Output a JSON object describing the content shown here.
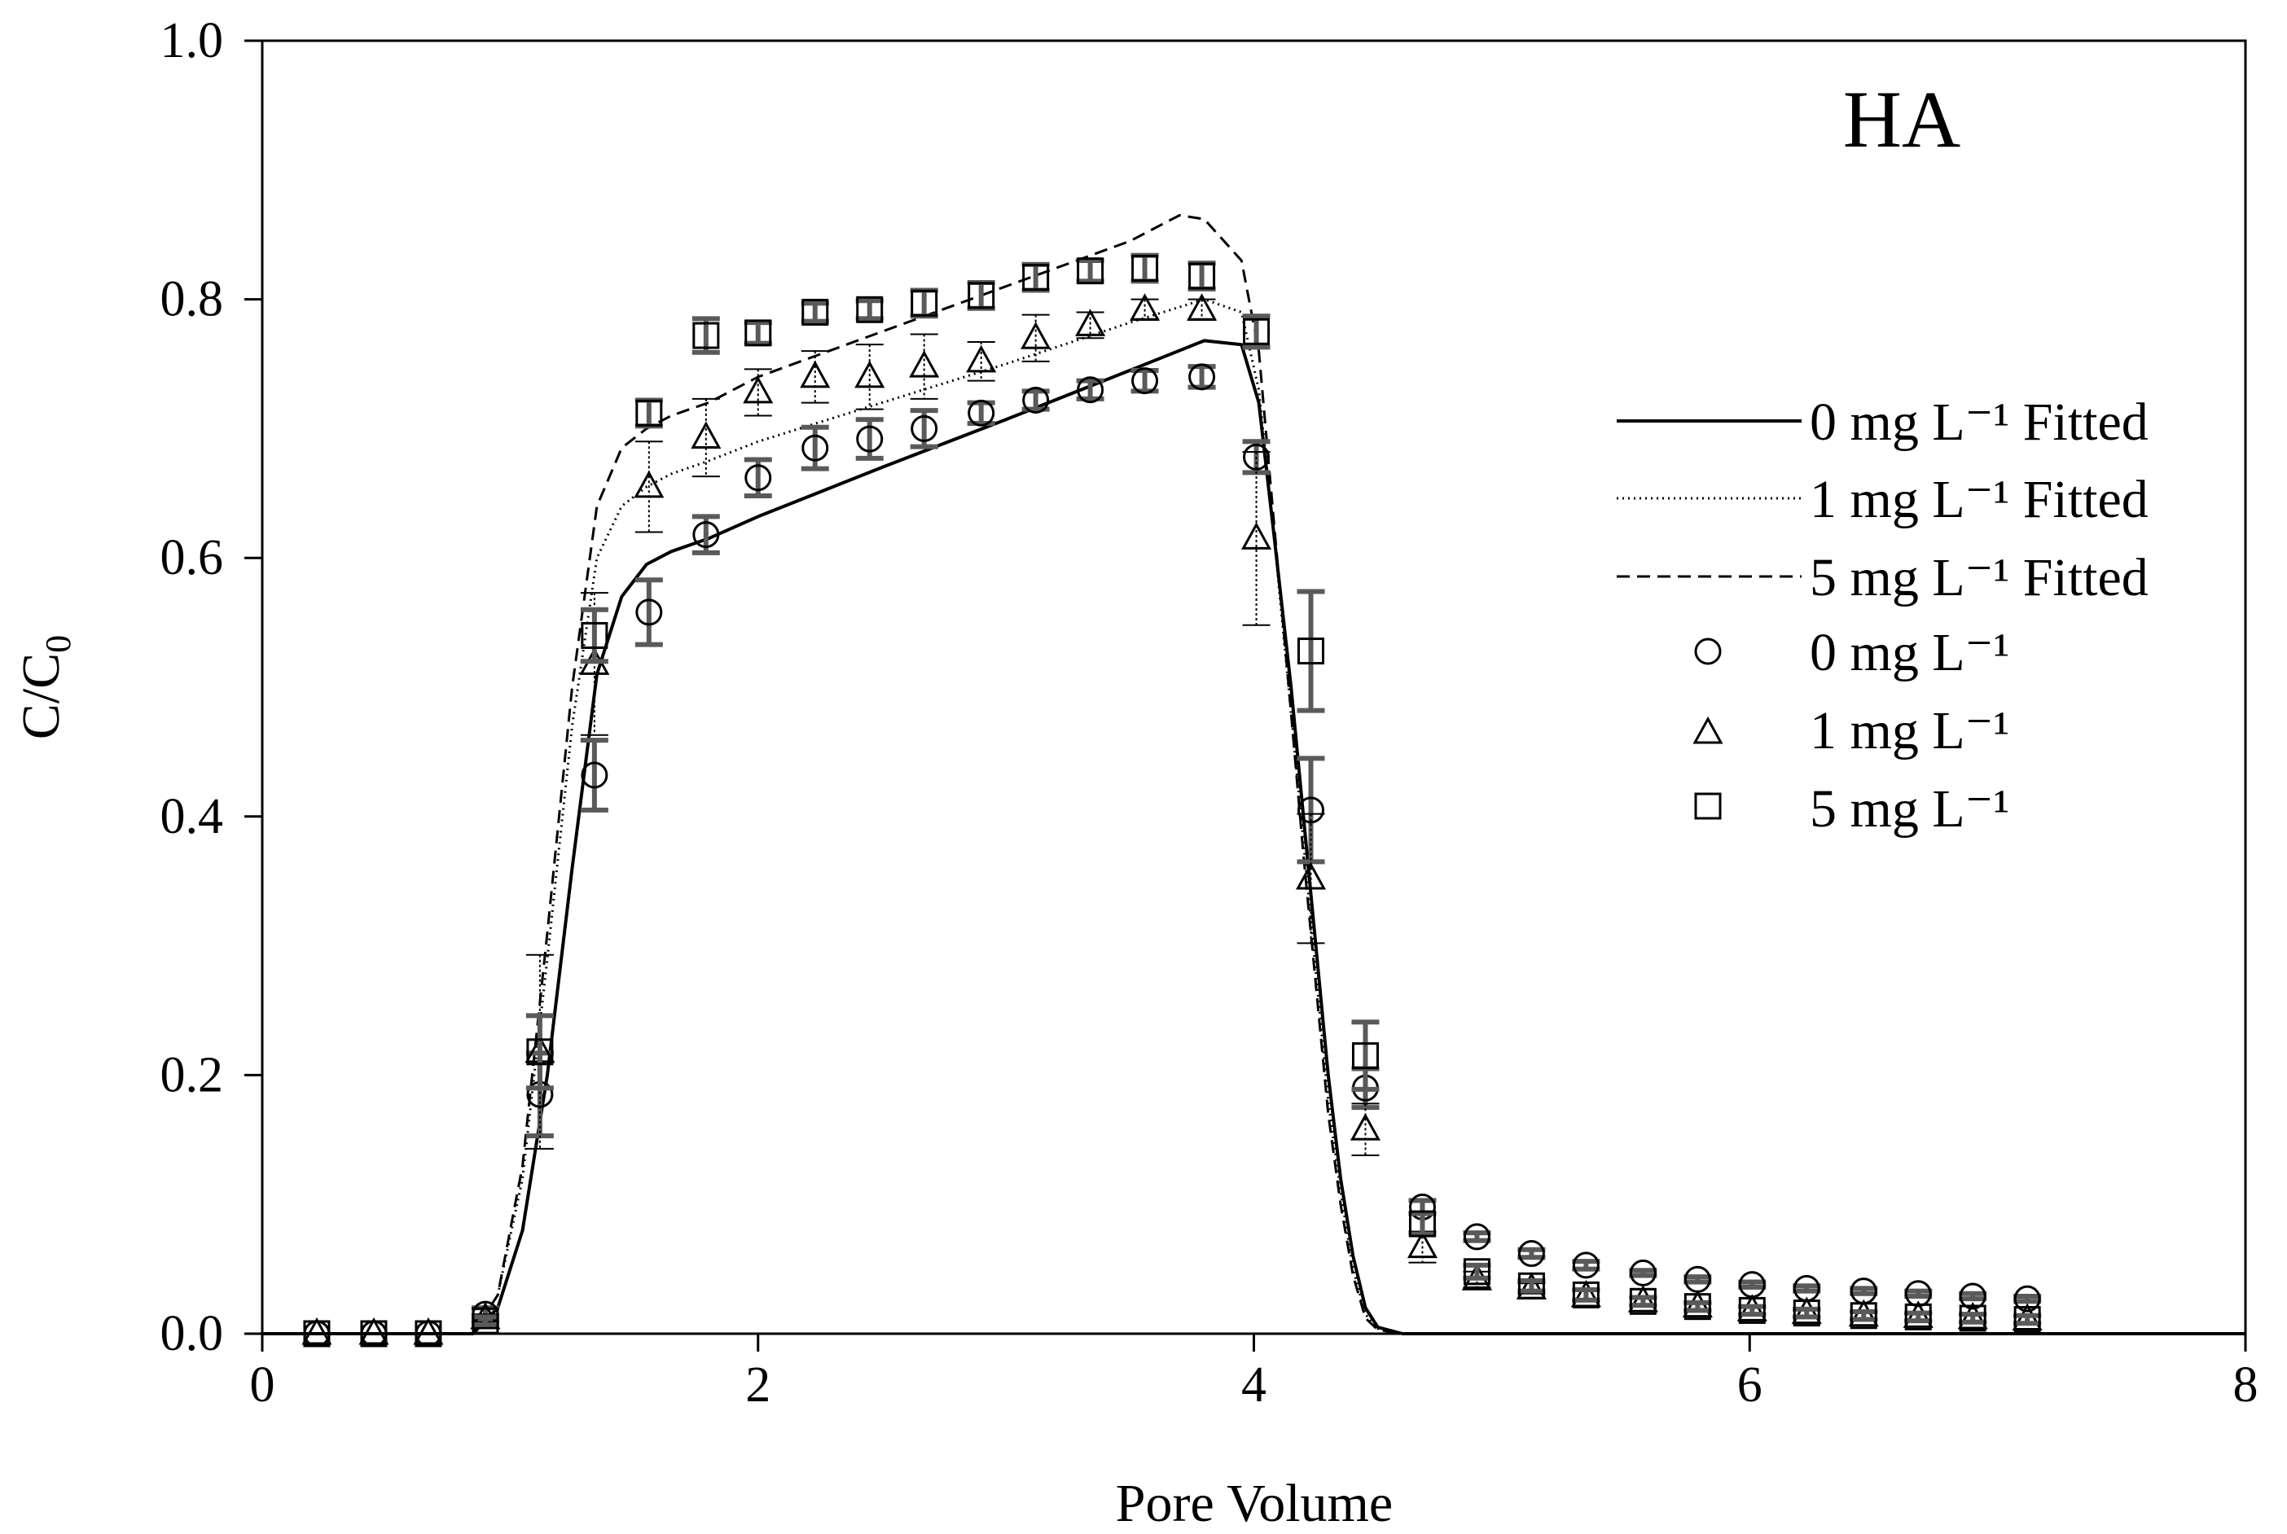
{
  "chart_data": {
    "type": "scatter",
    "panel_label": "HA",
    "xlabel": "Pore Volume",
    "ylabel_main": "C/C",
    "ylabel_sub": "0",
    "xlim": [
      0,
      8
    ],
    "ylim": [
      0,
      1
    ],
    "x_ticks": [
      0,
      2,
      4,
      6,
      8
    ],
    "y_ticks": [
      0.0,
      0.2,
      0.4,
      0.6,
      0.8,
      1.0
    ],
    "x_tick_labels": [
      "0",
      "2",
      "4",
      "6",
      "8"
    ],
    "y_tick_labels": [
      "0.0",
      "0.2",
      "0.4",
      "0.6",
      "0.8",
      "1.0"
    ],
    "grid": false,
    "legend_position": "right",
    "legend": [
      {
        "label": "0 mg L⁻¹ Fitted",
        "kind": "line",
        "style": "solid"
      },
      {
        "label": "1 mg L⁻¹ Fitted",
        "kind": "line",
        "style": "dotted"
      },
      {
        "label": "5 mg L⁻¹ Fitted",
        "kind": "line",
        "style": "dashed"
      },
      {
        "label": "0 mg L⁻¹",
        "kind": "marker",
        "marker": "circle"
      },
      {
        "label": "1 mg L⁻¹",
        "kind": "marker",
        "marker": "triangle"
      },
      {
        "label": "5 mg L⁻¹",
        "kind": "marker",
        "marker": "square"
      }
    ],
    "fitted": [
      {
        "name": "0 mg L⁻¹ Fitted",
        "style": "solid",
        "x": [
          0,
          0.85,
          0.95,
          1.05,
          1.15,
          1.25,
          1.35,
          1.45,
          1.55,
          1.65,
          1.8,
          2.0,
          2.5,
          3.0,
          3.5,
          3.8,
          3.95,
          4.02,
          4.08,
          4.15,
          4.2,
          4.25,
          4.3,
          4.35,
          4.4,
          4.45,
          4.5,
          4.6,
          8
        ],
        "y": [
          0,
          0,
          0.02,
          0.08,
          0.2,
          0.36,
          0.51,
          0.57,
          0.595,
          0.605,
          0.615,
          0.632,
          0.67,
          0.707,
          0.745,
          0.768,
          0.765,
          0.72,
          0.62,
          0.5,
          0.4,
          0.3,
          0.2,
          0.12,
          0.06,
          0.02,
          0.005,
          0.0,
          0
        ]
      },
      {
        "name": "1 mg L⁻¹ Fitted",
        "style": "dotted",
        "x": [
          0,
          0.85,
          0.95,
          1.05,
          1.15,
          1.25,
          1.35,
          1.45,
          1.55,
          1.65,
          1.8,
          2.0,
          2.5,
          3.0,
          3.5,
          3.8,
          3.95,
          4.02,
          4.08,
          4.15,
          4.2,
          4.25,
          4.3,
          4.35,
          4.4,
          4.45,
          4.5,
          4.6,
          8
        ],
        "y": [
          0,
          0,
          0.03,
          0.12,
          0.29,
          0.47,
          0.6,
          0.64,
          0.655,
          0.665,
          0.675,
          0.69,
          0.72,
          0.75,
          0.782,
          0.8,
          0.79,
          0.73,
          0.62,
          0.48,
          0.38,
          0.28,
          0.18,
          0.11,
          0.05,
          0.015,
          0.004,
          0.0,
          0
        ]
      },
      {
        "name": "5 mg L⁻¹ Fitted",
        "style": "dashed",
        "x": [
          0,
          0.85,
          0.95,
          1.05,
          1.15,
          1.25,
          1.35,
          1.45,
          1.55,
          1.65,
          1.8,
          2.0,
          2.5,
          3.0,
          3.5,
          3.7,
          3.8,
          3.95,
          4.02,
          4.08,
          4.15,
          4.2,
          4.25,
          4.3,
          4.35,
          4.4,
          4.45,
          4.5,
          4.6,
          8
        ],
        "y": [
          0,
          0,
          0.03,
          0.13,
          0.31,
          0.5,
          0.64,
          0.685,
          0.7,
          0.71,
          0.72,
          0.74,
          0.775,
          0.81,
          0.845,
          0.865,
          0.862,
          0.83,
          0.76,
          0.63,
          0.48,
          0.37,
          0.27,
          0.17,
          0.1,
          0.045,
          0.012,
          0.003,
          0.0,
          0
        ]
      }
    ],
    "observed": [
      {
        "name": "0 mg L⁻¹",
        "marker": "circle",
        "x": [
          0.22,
          0.45,
          0.67,
          0.9,
          1.12,
          1.34,
          1.56,
          1.79,
          2.0,
          2.23,
          2.45,
          2.67,
          2.9,
          3.12,
          3.34,
          3.56,
          3.79,
          4.01,
          4.23,
          4.45,
          4.68,
          4.9,
          5.12,
          5.34,
          5.57,
          5.79,
          6.01,
          6.23,
          6.46,
          6.68,
          6.9,
          7.12
        ],
        "y": [
          0.0,
          0.0,
          0.0,
          0.015,
          0.185,
          0.432,
          0.558,
          0.618,
          0.662,
          0.685,
          0.692,
          0.7,
          0.712,
          0.722,
          0.73,
          0.737,
          0.74,
          0.678,
          0.405,
          0.19,
          0.098,
          0.075,
          0.062,
          0.053,
          0.047,
          0.042,
          0.038,
          0.035,
          0.033,
          0.031,
          0.029,
          0.027
        ],
        "err": [
          0,
          0,
          0,
          0.005,
          0.032,
          0.027,
          0.025,
          0.014,
          0.014,
          0.016,
          0.015,
          0.014,
          0.008,
          0.007,
          0.007,
          0.008,
          0.008,
          0.012,
          0.04,
          0.015,
          0.005,
          0.003,
          0.003,
          0.003,
          0.002,
          0.002,
          0.002,
          0.002,
          0.002,
          0.002,
          0.002,
          0.002
        ]
      },
      {
        "name": "1 mg L⁻¹",
        "marker": "triangle",
        "x": [
          0.22,
          0.45,
          0.67,
          0.9,
          1.12,
          1.34,
          1.56,
          1.79,
          2.0,
          2.23,
          2.45,
          2.67,
          2.9,
          3.12,
          3.34,
          3.56,
          3.79,
          4.01,
          4.23,
          4.45,
          4.68,
          4.9,
          5.12,
          5.34,
          5.57,
          5.79,
          6.01,
          6.23,
          6.46,
          6.68,
          6.9,
          7.12
        ],
        "y": [
          0.0,
          0.0,
          0.0,
          0.012,
          0.218,
          0.518,
          0.655,
          0.693,
          0.728,
          0.74,
          0.74,
          0.748,
          0.752,
          0.77,
          0.78,
          0.792,
          0.792,
          0.615,
          0.352,
          0.158,
          0.067,
          0.042,
          0.035,
          0.029,
          0.025,
          0.021,
          0.018,
          0.016,
          0.014,
          0.013,
          0.012,
          0.011
        ],
        "err": [
          0,
          0,
          0,
          0.003,
          0.075,
          0.055,
          0.035,
          0.03,
          0.018,
          0.02,
          0.025,
          0.025,
          0.015,
          0.018,
          0.01,
          0.008,
          0.008,
          0.067,
          0.05,
          0.02,
          0.012,
          0.006,
          0.004,
          0.004,
          0.003,
          0.003,
          0.003,
          0.003,
          0.003,
          0.003,
          0.003,
          0.003
        ]
      },
      {
        "name": "5 mg L⁻¹",
        "marker": "square",
        "x": [
          0.22,
          0.45,
          0.67,
          0.9,
          1.12,
          1.34,
          1.56,
          1.79,
          2.0,
          2.23,
          2.45,
          2.67,
          2.9,
          3.12,
          3.34,
          3.56,
          3.79,
          4.01,
          4.23,
          4.45,
          4.68,
          4.9,
          5.12,
          5.34,
          5.57,
          5.79,
          6.01,
          6.23,
          6.46,
          6.68,
          6.9,
          7.12
        ],
        "y": [
          0.0,
          0.0,
          0.0,
          0.01,
          0.218,
          0.54,
          0.712,
          0.772,
          0.774,
          0.79,
          0.792,
          0.797,
          0.803,
          0.817,
          0.822,
          0.824,
          0.818,
          0.775,
          0.528,
          0.215,
          0.085,
          0.048,
          0.037,
          0.03,
          0.025,
          0.021,
          0.018,
          0.016,
          0.014,
          0.013,
          0.012,
          0.011
        ],
        "err": [
          0,
          0,
          0,
          0.003,
          0.028,
          0.02,
          0.01,
          0.013,
          0.008,
          0.007,
          0.007,
          0.01,
          0.01,
          0.01,
          0.008,
          0.01,
          0.01,
          0.012,
          0.046,
          0.026,
          0.008,
          0.005,
          0.004,
          0.004,
          0.003,
          0.003,
          0.003,
          0.003,
          0.003,
          0.003,
          0.003,
          0.003
        ]
      }
    ]
  }
}
